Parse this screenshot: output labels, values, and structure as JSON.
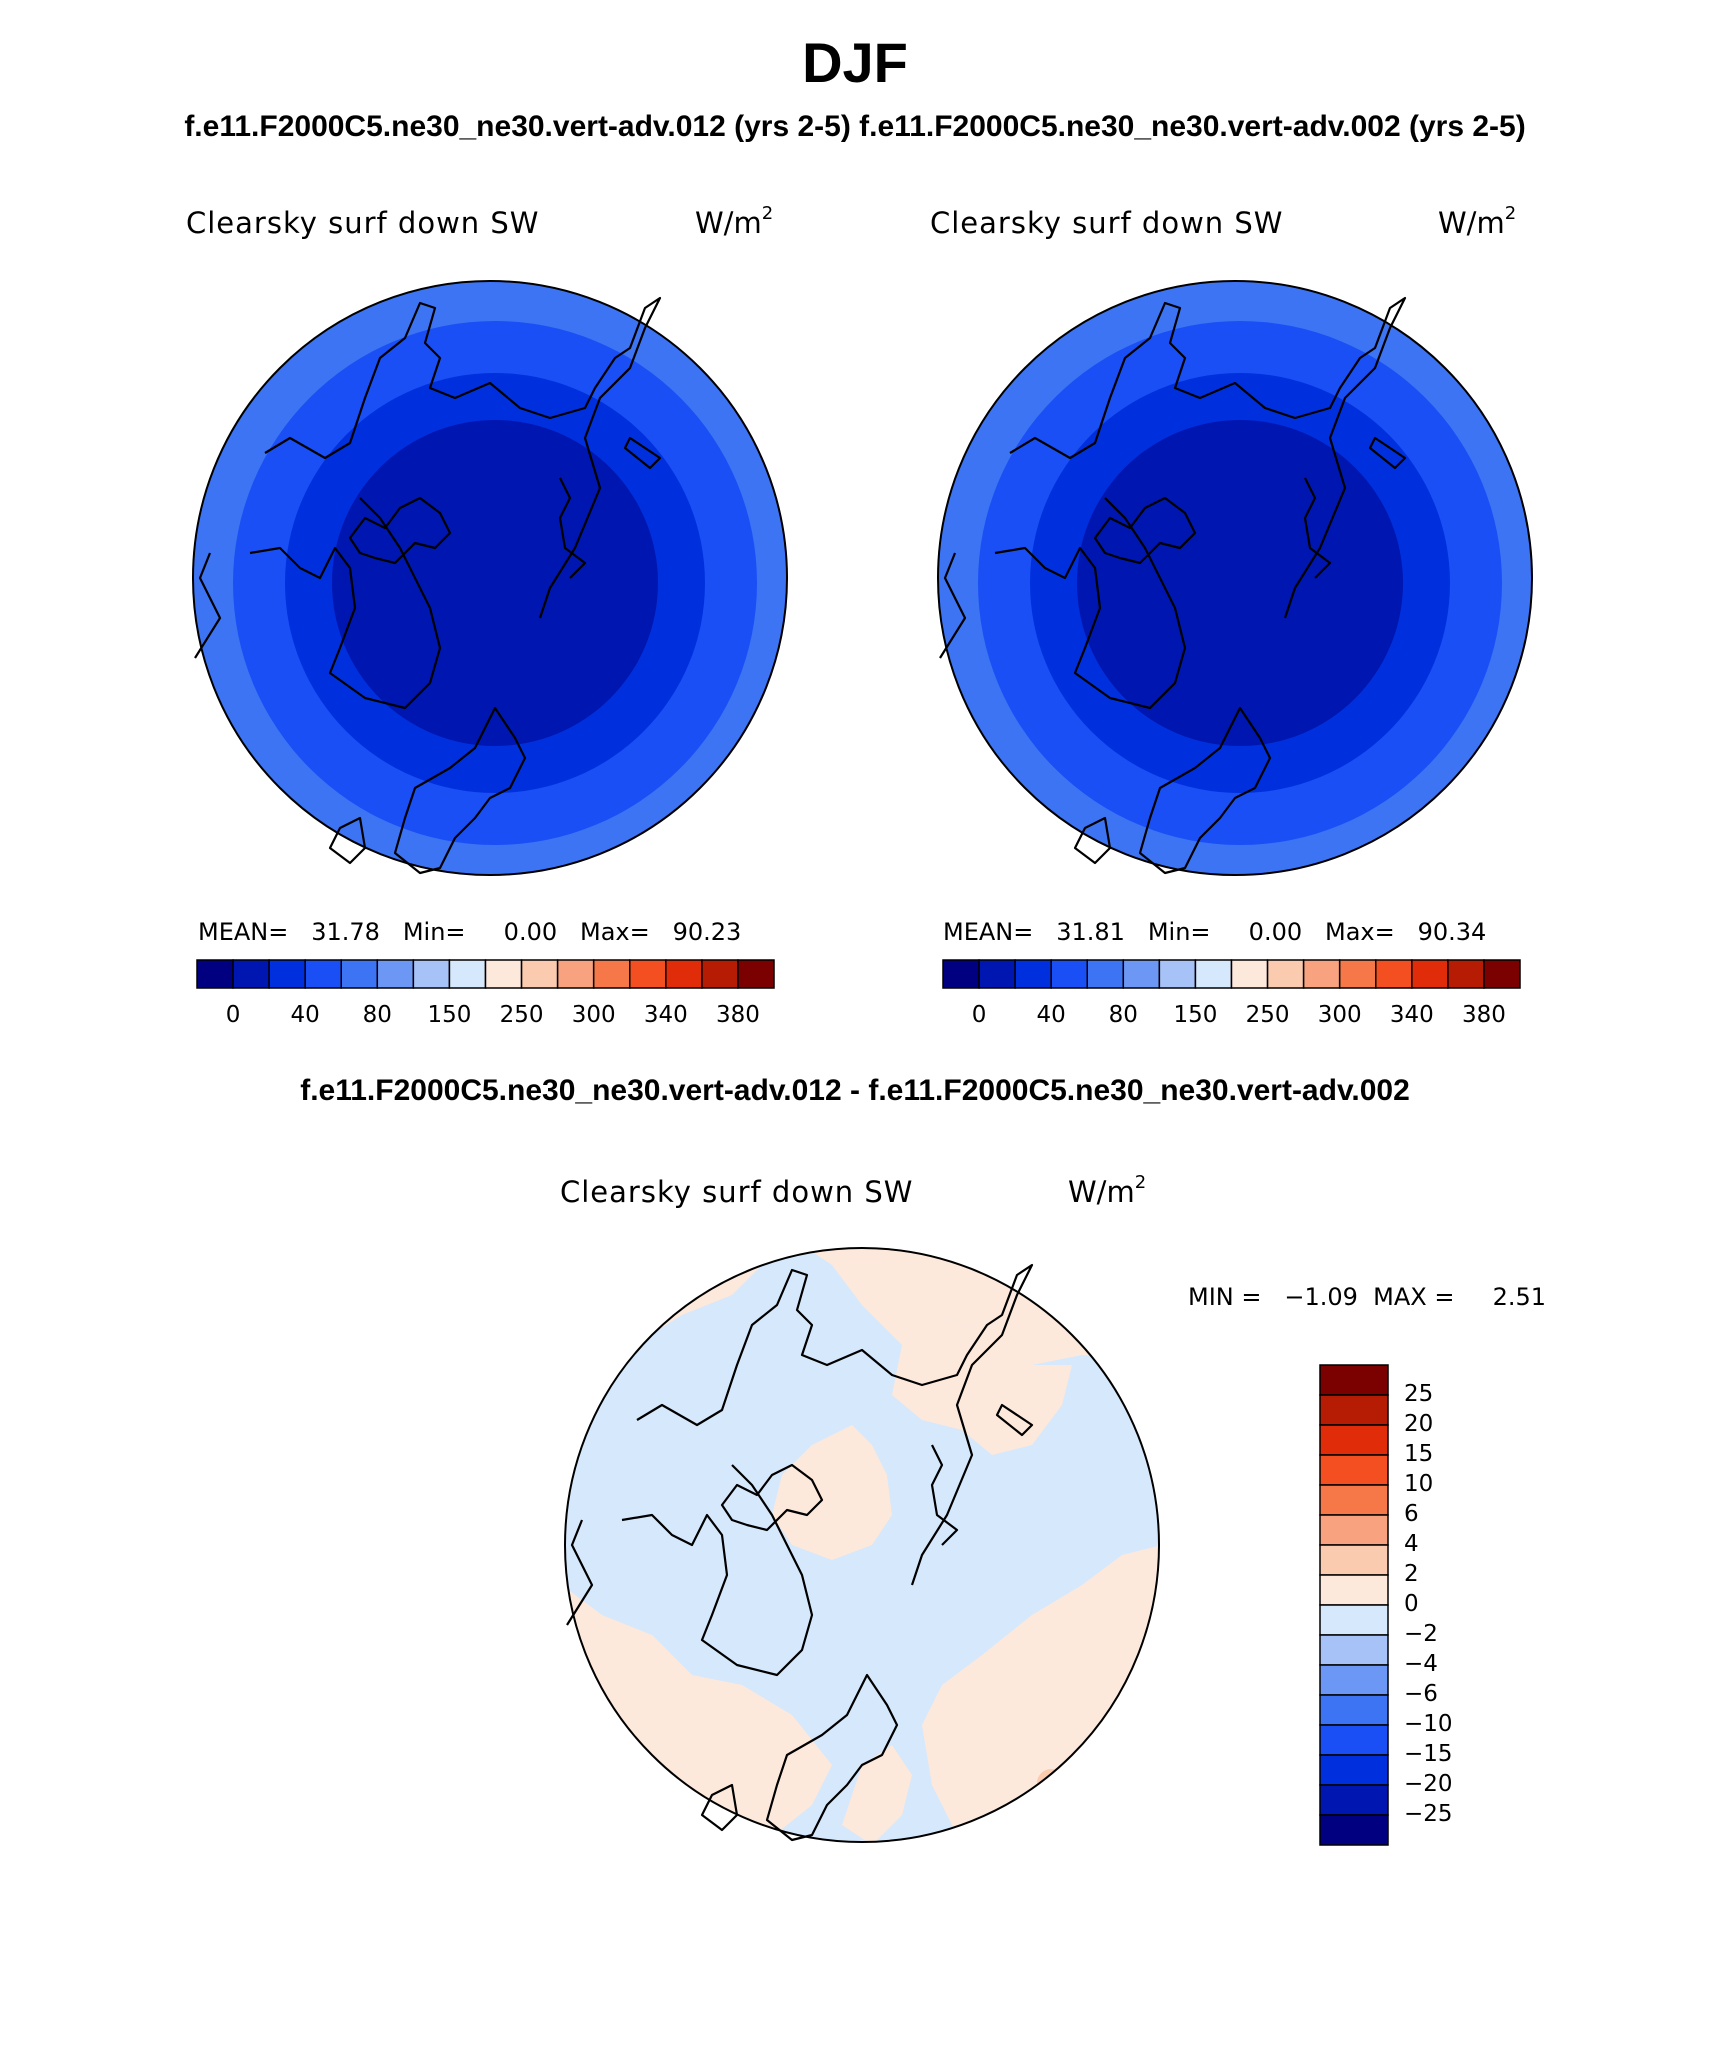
{
  "title": "DJF",
  "subtitle": "f.e11.F2000C5.ne30_ne30.vert-adv.012 (yrs 2-5)  f.e11.F2000C5.ne30_ne30.vert-adv.002 (yrs 2-5)",
  "diff_case": "f.e11.F2000C5.ne30_ne30.vert-adv.012 - f.e11.F2000C5.ne30_ne30.vert-adv.002",
  "panels": [
    {
      "variable": "Clearsky surf down SW",
      "units_base": "W/m",
      "units_exp": "2",
      "stats": "MEAN=   31.78   Min=     0.00   Max=   90.23"
    },
    {
      "variable": "Clearsky surf down SW",
      "units_base": "W/m",
      "units_exp": "2",
      "stats": "MEAN=   31.81   Min=     0.00   Max=   90.34"
    }
  ],
  "diff_panel": {
    "variable": "Clearsky surf down SW",
    "units_base": "W/m",
    "units_exp": "2",
    "stats": "MIN =   −1.09  MAX =     2.51"
  },
  "abs_colorbar": {
    "colors": [
      "#000080",
      "#0016b0",
      "#0030dd",
      "#1a4ff5",
      "#3d74f4",
      "#6d97f5",
      "#a6c2f6",
      "#d6e8fb",
      "#fde9dc",
      "#fbcbb0",
      "#f9a27f",
      "#f67849",
      "#f34f20",
      "#e02c08",
      "#b61c04",
      "#7b0000"
    ],
    "labels": [
      "0",
      "40",
      "80",
      "150",
      "250",
      "300",
      "340",
      "380"
    ]
  },
  "diff_colorbar": {
    "colors": [
      "#7b0000",
      "#b61c04",
      "#e02c08",
      "#f34f20",
      "#f67849",
      "#f9a27f",
      "#fbcbb0",
      "#fde9dc",
      "#d6e8fb",
      "#a6c2f6",
      "#6d97f5",
      "#3d74f4",
      "#1a4ff5",
      "#0030dd",
      "#0016b0",
      "#000080"
    ],
    "labels": [
      "25",
      "20",
      "15",
      "10",
      "6",
      "4",
      "2",
      "0",
      "−2",
      "−4",
      "−6",
      "−10",
      "−15",
      "−20",
      "−25"
    ]
  },
  "map_fill_colors": {
    "outer_band": "#3d74f4",
    "middle_band": "#1a4ff5",
    "inner_band": "#0030dd",
    "core": "#0016b0",
    "diff_negative": "#d6e8fb",
    "diff_positive": "#fde9dc",
    "diff_peak": "#fbcbb0"
  }
}
